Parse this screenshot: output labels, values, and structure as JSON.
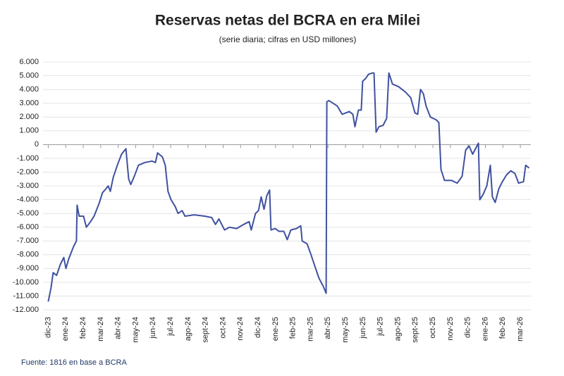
{
  "chart_data": {
    "type": "line",
    "title": "Reservas netas del BCRA en era Milei",
    "subtitle": "(serie diaria; cifras en USD millones)",
    "source": "Fuente: 1816 en base a BCRA",
    "x": [
      0,
      0.16,
      0.28,
      0.48,
      0.69,
      0.89,
      1.01,
      1.17,
      1.45,
      1.61,
      1.65,
      1.77,
      2.02,
      2.18,
      2.42,
      2.62,
      2.9,
      3.1,
      3.31,
      3.43,
      3.55,
      3.71,
      3.95,
      4.19,
      4.44,
      4.6,
      4.72,
      4.92,
      5.16,
      5.52,
      5.93,
      6.13,
      6.25,
      6.53,
      6.69,
      6.85,
      7.02,
      7.26,
      7.42,
      7.66,
      7.82,
      8.35,
      8.95,
      9.35,
      9.56,
      9.76,
      10.08,
      10.36,
      10.77,
      11.17,
      11.49,
      11.61,
      11.85,
      12.02,
      12.18,
      12.34,
      12.5,
      12.66,
      12.74,
      12.98,
      13.19,
      13.47,
      13.67,
      13.87,
      14.19,
      14.44,
      14.52,
      14.8,
      15.0,
      15.24,
      15.48,
      15.73,
      15.89,
      15.93,
      16.05,
      16.29,
      16.53,
      16.81,
      17.22,
      17.42,
      17.54,
      17.74,
      17.9,
      17.98,
      18.15,
      18.31,
      18.55,
      18.63,
      18.75,
      18.91,
      19.15,
      19.35,
      19.48,
      19.68,
      20.04,
      20.44,
      20.73,
      20.97,
      21.13,
      21.29,
      21.45,
      21.61,
      21.85,
      22.18,
      22.34,
      22.46,
      22.66,
      23.06,
      23.39,
      23.67,
      23.87,
      24.07,
      24.27,
      24.6,
      24.68,
      24.88,
      25.08,
      25.28,
      25.4,
      25.56,
      25.77,
      25.97,
      26.21,
      26.45,
      26.69,
      26.9,
      27.18,
      27.3,
      27.5
    ],
    "series": [
      {
        "color": "#3f51a0",
        "values": [
          -11400,
          -10400,
          -9300,
          -9500,
          -8700,
          -8200,
          -9000,
          -8300,
          -7400,
          -7000,
          -4400,
          -5200,
          -5200,
          -6000,
          -5600,
          -5200,
          -4300,
          -3500,
          -3200,
          -3000,
          -3400,
          -2400,
          -1500,
          -700,
          -300,
          -2500,
          -2900,
          -2300,
          -1500,
          -1300,
          -1200,
          -1300,
          -600,
          -900,
          -1500,
          -3400,
          -4000,
          -4500,
          -5000,
          -4800,
          -5200,
          -5100,
          -5200,
          -5300,
          -5800,
          -5400,
          -6200,
          -6000,
          -6100,
          -5800,
          -5600,
          -6200,
          -5000,
          -4800,
          -3800,
          -4700,
          -3700,
          -3300,
          -6200,
          -6100,
          -6300,
          -6300,
          -6900,
          -6200,
          -6100,
          -5900,
          -7000,
          -7200,
          -7900,
          -8800,
          -9700,
          -10300,
          -10800,
          3100,
          3200,
          3000,
          2800,
          2200,
          2400,
          2200,
          1300,
          2500,
          2500,
          4600,
          4800,
          5100,
          5200,
          5200,
          900,
          1300,
          1400,
          1900,
          5200,
          4400,
          4200,
          3800,
          3400,
          2300,
          2200,
          4000,
          3700,
          2800,
          2000,
          1800,
          1600,
          -1800,
          -2600,
          -2600,
          -2800,
          -2300,
          -400,
          -100,
          -700,
          100,
          -4000,
          -3600,
          -3000,
          -1500,
          -3800,
          -4200,
          -3200,
          -2700,
          -2200,
          -1900,
          -2100,
          -2800,
          -2700,
          -1500,
          -1700
        ]
      }
    ],
    "xlim": [
      -0.3,
      27.6
    ],
    "xticks": [
      {
        "value": 0,
        "label": "dic-23"
      },
      {
        "value": 1,
        "label": "ene-24"
      },
      {
        "value": 2,
        "label": "feb-24"
      },
      {
        "value": 3,
        "label": "mar-24"
      },
      {
        "value": 4,
        "label": "abr-24"
      },
      {
        "value": 5,
        "label": "may-24"
      },
      {
        "value": 6,
        "label": "jun-24"
      },
      {
        "value": 7,
        "label": "jul-24"
      },
      {
        "value": 8,
        "label": "ago-24"
      },
      {
        "value": 9,
        "label": "sept-24"
      },
      {
        "value": 10,
        "label": "oct-24"
      },
      {
        "value": 11,
        "label": "nov-24"
      },
      {
        "value": 12,
        "label": "dic-24"
      },
      {
        "value": 13,
        "label": "ene-25"
      },
      {
        "value": 14,
        "label": "feb-25"
      },
      {
        "value": 15,
        "label": "mar-25"
      },
      {
        "value": 16,
        "label": "abr-25"
      },
      {
        "value": 17,
        "label": "may-25"
      },
      {
        "value": 18,
        "label": "jun-25"
      },
      {
        "value": 19,
        "label": "jul-25"
      },
      {
        "value": 20,
        "label": "ago-25"
      },
      {
        "value": 21,
        "label": "sept-25"
      },
      {
        "value": 22,
        "label": "oct-25"
      },
      {
        "value": 23,
        "label": "nov-25"
      },
      {
        "value": 24,
        "label": "dic-25"
      },
      {
        "value": 25,
        "label": "ene-26"
      },
      {
        "value": 26,
        "label": "feb-26"
      },
      {
        "value": 27,
        "label": "mar-26"
      }
    ],
    "ylim": [
      -12000,
      6000
    ],
    "yticks": [
      {
        "value": 6000,
        "label": "6.000"
      },
      {
        "value": 5000,
        "label": "5.000"
      },
      {
        "value": 4000,
        "label": "4.000"
      },
      {
        "value": 3000,
        "label": "3.000"
      },
      {
        "value": 2000,
        "label": "2.000"
      },
      {
        "value": 1000,
        "label": "1.000"
      },
      0,
      {
        "value": -1000,
        "label": "-1.000"
      },
      {
        "value": -2000,
        "label": "-2.000"
      },
      {
        "value": -3000,
        "label": "-3.000"
      },
      {
        "value": -4000,
        "label": "-4.000"
      },
      {
        "value": -5000,
        "label": "-5.000"
      },
      {
        "value": -6000,
        "label": "-6.000"
      },
      {
        "value": -7000,
        "label": "-7.000"
      },
      {
        "value": -8000,
        "label": "-8.000"
      },
      {
        "value": -9000,
        "label": "-9.000"
      },
      {
        "value": -10000,
        "label": "-10.000"
      },
      {
        "value": -11000,
        "label": "-11.000"
      },
      {
        "value": -12000,
        "label": "-12.000"
      }
    ],
    "grid": true
  }
}
